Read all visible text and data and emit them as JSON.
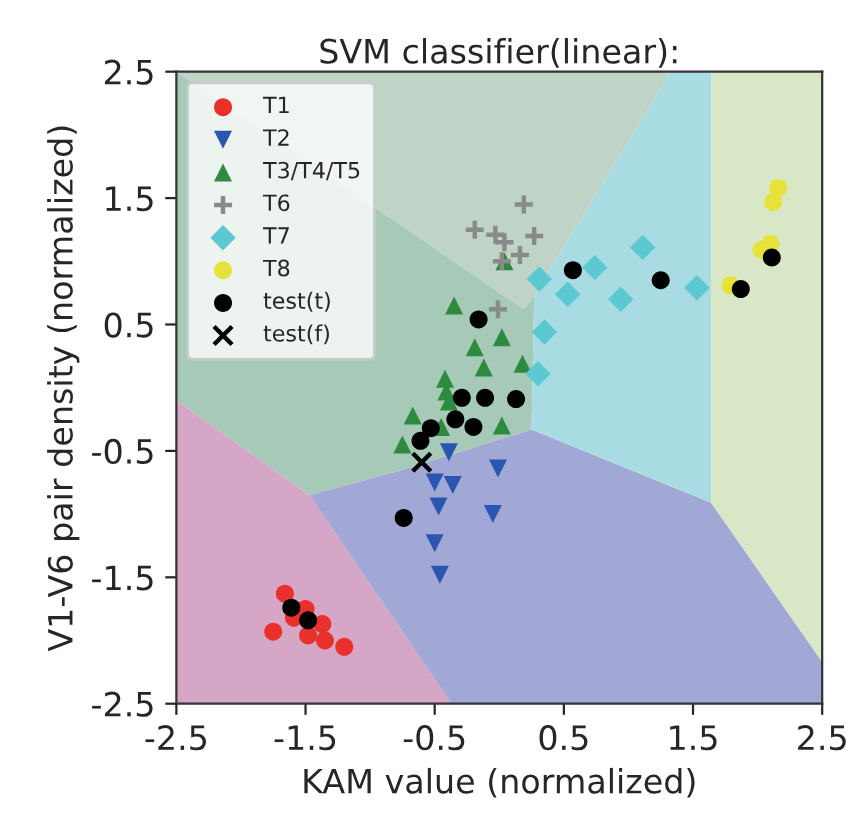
{
  "chart_data": {
    "type": "scatter",
    "title": "SVM classifier(linear):",
    "xlabel": "KAM value (normalized)",
    "ylabel": "V1-V6 pair density (normalized)",
    "xlim": [
      -2.5,
      2.5
    ],
    "ylim": [
      -2.5,
      2.5
    ],
    "xticks": [
      -2.5,
      -1.5,
      -0.5,
      0.5,
      1.5,
      2.5
    ],
    "yticks": [
      -2.5,
      -1.5,
      -0.5,
      0.5,
      1.5,
      2.5
    ],
    "grid": false,
    "legend": "top left",
    "series": [
      {
        "name": "T1",
        "color": "#e8312a",
        "marker": "circle",
        "x": [
          -1.75,
          -1.59,
          -1.5,
          -1.48,
          -1.37,
          -1.35,
          -1.2,
          -1.66
        ],
        "values": [
          -1.93,
          -1.82,
          -1.75,
          -1.96,
          -1.87,
          -2.0,
          -2.05,
          -1.63
        ]
      },
      {
        "name": "T2",
        "color": "#2a55b0",
        "marker": "triangle_down",
        "x": [
          -0.39,
          -0.01,
          -0.5,
          -0.36,
          -0.47,
          -0.05,
          -0.5,
          -0.46
        ],
        "values": [
          -0.51,
          -0.64,
          -0.75,
          -0.77,
          -0.94,
          -1.0,
          -1.23,
          -1.48
        ]
      },
      {
        "name": "T3/T4/T5",
        "color": "#2e8b3e",
        "marker": "triangle",
        "x": [
          -0.35,
          -0.19,
          0.02,
          0.04,
          -0.12,
          0.18,
          -0.42,
          -0.41,
          -0.39,
          -0.67,
          0.02,
          -0.45,
          -0.75
        ],
        "values": [
          0.65,
          0.32,
          0.4,
          1.0,
          0.16,
          0.19,
          0.07,
          -0.03,
          -0.11,
          -0.22,
          -0.3,
          -0.31,
          -0.45
        ]
      },
      {
        "name": "T6",
        "color": "#8a8a8a",
        "marker": "plus",
        "x": [
          0.19,
          -0.19,
          -0.03,
          0.04,
          0.27,
          0.16,
          0.02,
          -0.01
        ],
        "values": [
          1.45,
          1.25,
          1.21,
          1.15,
          1.2,
          1.05,
          1.0,
          0.62
        ]
      },
      {
        "name": "T7",
        "color": "#5cc8d2",
        "marker": "diamond",
        "x": [
          1.11,
          0.74,
          0.31,
          0.53,
          0.94,
          1.53,
          0.35,
          0.3
        ],
        "values": [
          1.11,
          0.95,
          0.86,
          0.74,
          0.7,
          0.79,
          0.44,
          0.11
        ]
      },
      {
        "name": "T8",
        "color": "#e6e23a",
        "marker": "circle",
        "x": [
          2.16,
          2.12,
          2.1,
          2.03,
          1.79
        ],
        "values": [
          1.58,
          1.47,
          1.14,
          1.09,
          0.81
        ]
      },
      {
        "name": "test(t)",
        "color": "#000000",
        "marker": "circle",
        "x": [
          0.57,
          1.25,
          1.87,
          2.11,
          -0.16,
          -0.29,
          -0.11,
          0.13,
          -0.34,
          -0.2,
          -0.53,
          -0.61,
          -0.74,
          -1.61,
          -1.48
        ],
        "values": [
          0.93,
          0.85,
          0.78,
          1.03,
          0.54,
          -0.08,
          -0.08,
          -0.09,
          -0.25,
          -0.31,
          -0.32,
          -0.42,
          -1.03,
          -1.74,
          -1.84
        ]
      },
      {
        "name": "test(f)",
        "color": "#000000",
        "marker": "cross",
        "x": [
          -0.6
        ],
        "values": [
          -0.59
        ]
      }
    ]
  }
}
